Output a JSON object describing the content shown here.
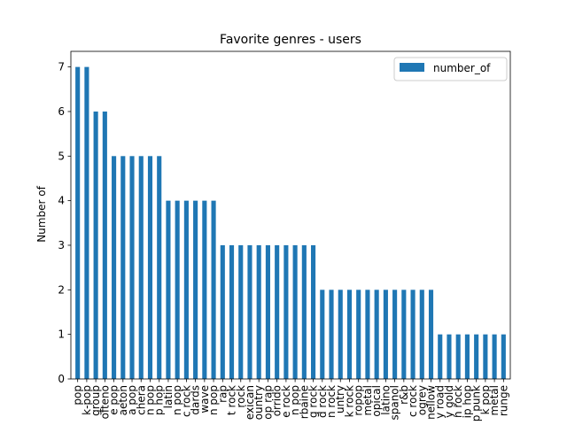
{
  "chart_data": {
    "type": "bar",
    "title": "Favorite genres - users",
    "xlabel": "",
    "ylabel": "Number of",
    "ylim": [
      0,
      7.35
    ],
    "yticks": [
      0,
      1,
      2,
      3,
      4,
      5,
      6,
      7
    ],
    "grid": false,
    "legend_position": "top-right",
    "bar_color": "#1f77b4",
    "categories": [
      "pop",
      "k-pop",
      "group",
      "ofteno",
      "e pop",
      "aeton",
      "a pop",
      "chera",
      "n pop",
      "p hop",
      "latin",
      "n pop",
      "c rock",
      "dards",
      "wave",
      "n pop",
      "rap",
      "t rock",
      "rock",
      "exican",
      "ountry",
      "op rap",
      "orrido",
      "e rock",
      "n pop",
      "rbaine",
      "g rock",
      "d rock",
      "n rock",
      "untry",
      "k rock",
      "ropop",
      "metal",
      "opical",
      "latino",
      "spanol",
      "r&b",
      "c rock",
      "ogrey",
      "nellow",
      "y road",
      "y gold",
      "n rock",
      "ip hop",
      "p punk",
      "k pop",
      "metal",
      "runge"
    ],
    "series": [
      {
        "name": "number_of",
        "values": [
          7,
          7,
          6,
          6,
          5,
          5,
          5,
          5,
          5,
          5,
          4,
          4,
          4,
          4,
          4,
          4,
          3,
          3,
          3,
          3,
          3,
          3,
          3,
          3,
          3,
          3,
          3,
          2,
          2,
          2,
          2,
          2,
          2,
          2,
          2,
          2,
          2,
          2,
          2,
          2,
          1,
          1,
          1,
          1,
          1,
          1,
          1,
          1
        ]
      }
    ]
  }
}
